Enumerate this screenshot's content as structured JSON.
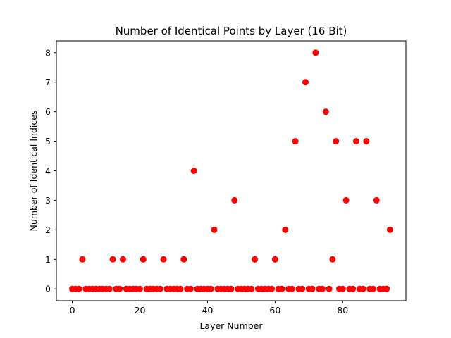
{
  "chart_data": {
    "type": "scatter",
    "title": "Number of Identical Points by Layer (16 Bit)",
    "xlabel": "Layer Number",
    "ylabel": "Number of Identical Indices",
    "xlim": [
      -4.7,
      98.7
    ],
    "ylim": [
      -0.4,
      8.4
    ],
    "xticks": [
      0,
      20,
      40,
      60,
      80
    ],
    "yticks": [
      0,
      1,
      2,
      3,
      4,
      5,
      6,
      7,
      8
    ],
    "grid": false,
    "legend": "none",
    "marker_color": "#ff0000",
    "x": [
      0,
      1,
      2,
      3,
      4,
      5,
      6,
      7,
      8,
      9,
      10,
      11,
      12,
      13,
      14,
      15,
      16,
      17,
      18,
      19,
      20,
      21,
      22,
      23,
      24,
      25,
      26,
      27,
      28,
      29,
      30,
      31,
      32,
      33,
      34,
      35,
      36,
      37,
      38,
      39,
      40,
      41,
      42,
      43,
      44,
      45,
      46,
      47,
      48,
      49,
      50,
      51,
      52,
      53,
      54,
      55,
      56,
      57,
      58,
      59,
      60,
      61,
      62,
      63,
      64,
      65,
      66,
      67,
      68,
      69,
      70,
      71,
      72,
      73,
      74,
      75,
      76,
      77,
      78,
      79,
      80,
      81,
      82,
      83,
      84,
      85,
      86,
      87,
      88,
      89,
      90,
      91,
      92,
      93,
      94
    ],
    "y": [
      0,
      0,
      0,
      1,
      0,
      0,
      0,
      0,
      0,
      0,
      0,
      0,
      1,
      0,
      0,
      1,
      0,
      0,
      0,
      0,
      0,
      1,
      0,
      0,
      0,
      0,
      0,
      1,
      0,
      0,
      0,
      0,
      0,
      1,
      0,
      0,
      4,
      0,
      0,
      0,
      0,
      0,
      2,
      0,
      0,
      0,
      0,
      0,
      3,
      0,
      0,
      0,
      0,
      0,
      1,
      0,
      0,
      0,
      0,
      0,
      1,
      0,
      0,
      2,
      0,
      0,
      5,
      0,
      0,
      7,
      0,
      0,
      8,
      0,
      0,
      6,
      0,
      1,
      5,
      0,
      0,
      3,
      0,
      0,
      5,
      0,
      0,
      5,
      0,
      0,
      3,
      0,
      0,
      0,
      2
    ]
  }
}
